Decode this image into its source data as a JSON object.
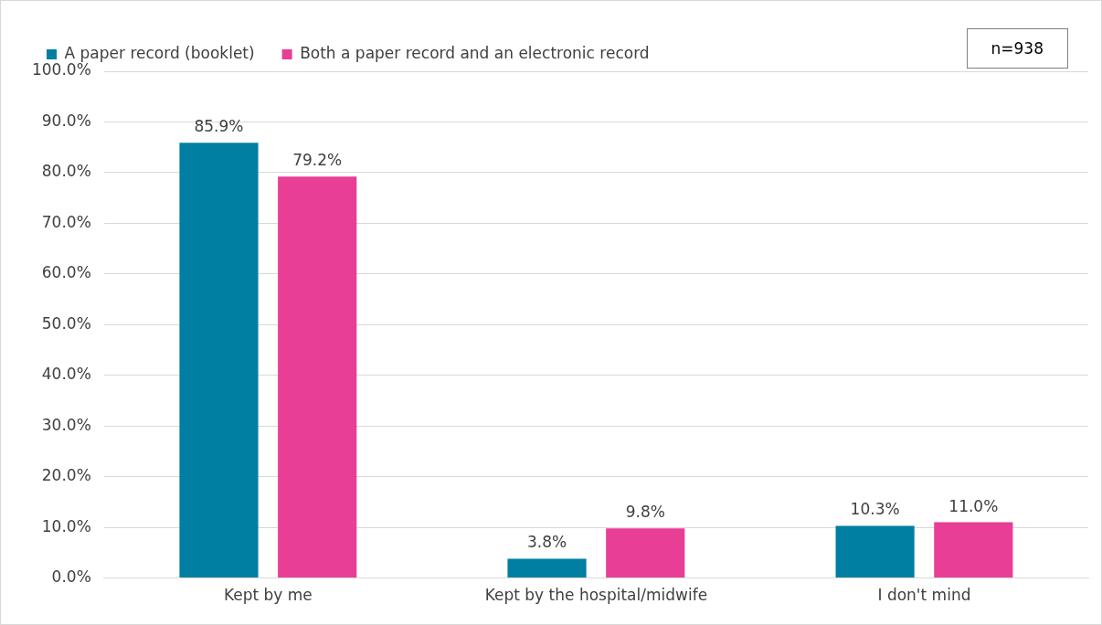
{
  "chart_data": {
    "type": "bar",
    "categories": [
      "Kept by me",
      "Kept by the hospital/midwife",
      "I don't mind"
    ],
    "series": [
      {
        "name": "A paper record (booklet)",
        "color": "#007fa3",
        "values": [
          85.9,
          3.8,
          10.3
        ],
        "value_labels": [
          "85.9%",
          "3.8%",
          "10.3%"
        ]
      },
      {
        "name": "Both a paper record and an electronic record",
        "color": "#e83e96",
        "values": [
          79.2,
          9.8,
          11.0
        ],
        "value_labels": [
          "79.2%",
          "9.8%",
          "11.0%"
        ]
      }
    ],
    "ylim": [
      0,
      100
    ],
    "yticks": [
      {
        "value": 0,
        "label": "0.0%"
      },
      {
        "value": 10,
        "label": "10.0%"
      },
      {
        "value": 20,
        "label": "20.0%"
      },
      {
        "value": 30,
        "label": "30.0%"
      },
      {
        "value": 40,
        "label": "40.0%"
      },
      {
        "value": 50,
        "label": "50.0%"
      },
      {
        "value": 60,
        "label": "60.0%"
      },
      {
        "value": 70,
        "label": "70.0%"
      },
      {
        "value": 80,
        "label": "80.0%"
      },
      {
        "value": 90,
        "label": "90.0%"
      },
      {
        "value": 100,
        "label": "100.0%"
      }
    ],
    "grid": "y",
    "legend": "top left",
    "annotations": [
      "n=938"
    ]
  }
}
